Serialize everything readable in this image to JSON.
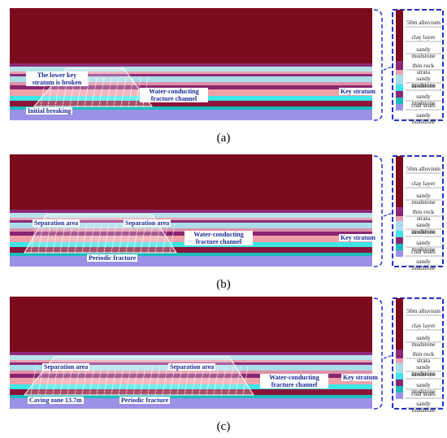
{
  "panels": [
    {
      "label": "(a)",
      "annotations": [
        "The lower key stratum is broken",
        "Water-conducting fracture channel",
        "Initial breaking",
        "Key stratum"
      ],
      "legend": [
        "50m alluvium",
        "clay layer",
        "sandy mudstone",
        "thin rock strata",
        "sandy mudstone",
        "sandstone",
        "sandy mudstone",
        "coal seam",
        "sandy mudstone"
      ]
    },
    {
      "label": "(b)",
      "annotations": [
        "Separation area",
        "Separation area",
        "Water-conducting fracture channel",
        "Key stratum",
        "Periodic fracture"
      ],
      "legend": [
        "50m alluvium",
        "clay layer",
        "sandy mudstone",
        "thin rock strata",
        "sandy mudstone",
        "sandstone",
        "sandy mudstone",
        "coal seam",
        "sandy mudstone"
      ]
    },
    {
      "label": "(c)",
      "annotations": [
        "Separation area",
        "Separation area",
        "Water-conducting fracture channel",
        "Key stratum",
        "Caving zone 13.7m",
        "Periodic fracture"
      ],
      "legend": [
        "50m alluvium",
        "clay layer",
        "sandy mudstone",
        "thin rock strata",
        "sandy mudstone",
        "sandstone",
        "sandy mudstone",
        "coal seam",
        "sandy mudstone"
      ]
    }
  ]
}
